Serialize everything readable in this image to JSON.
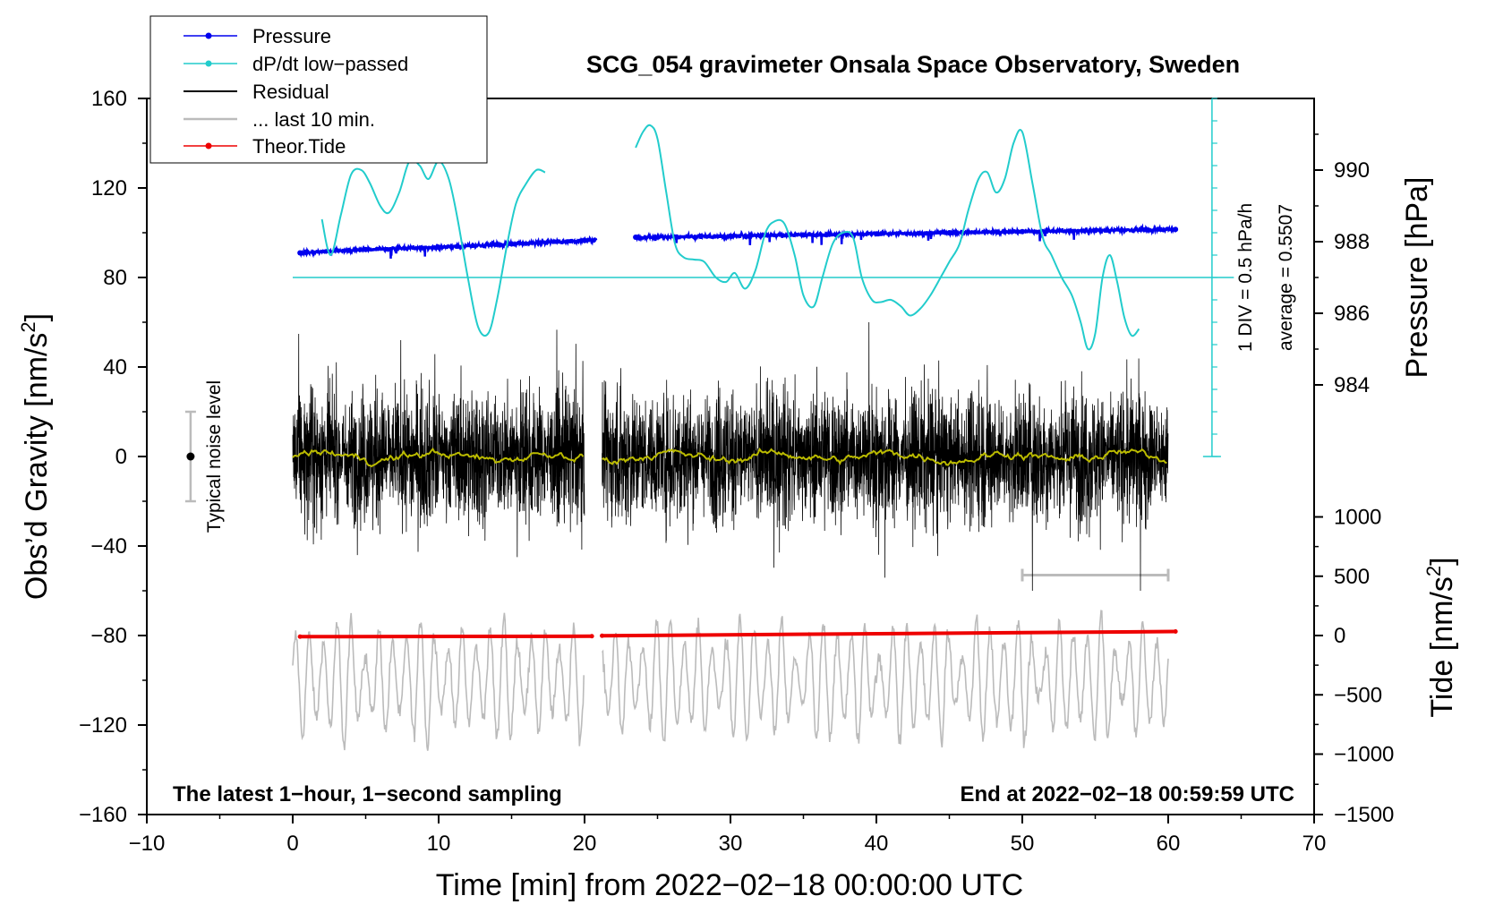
{
  "chart_data": {
    "type": "line",
    "title": "SCG_054 gravimeter Onsala Space Observatory, Sweden",
    "xlabel": "Time [min] from 2022−02−18 00:00:00 UTC",
    "ylabel_left": "Obs’d Gravity [nm/s²]",
    "ylabel_left_text": "Obs’d Gravity [nm/s",
    "ylabel_left_sup": "2",
    "ylabel_left_close": "]",
    "ylabel_right_pressure": "Pressure [hPa]",
    "ylabel_right_tide_text": "Tide [nm/s",
    "ylabel_right_tide_sup": "2",
    "ylabel_right_tide_close": "]",
    "xlim": [
      -10,
      70
    ],
    "ylim_left": [
      -160,
      160
    ],
    "x_ticks": [
      "−10",
      "0",
      "10",
      "20",
      "30",
      "40",
      "50",
      "60",
      "70"
    ],
    "x_tick_values": [
      -10,
      0,
      10,
      20,
      30,
      40,
      50,
      60,
      70
    ],
    "y_left_ticks": [
      "160",
      "120",
      "80",
      "40",
      "0",
      "−40",
      "−80",
      "−120",
      "−160"
    ],
    "y_left_tick_values": [
      160,
      120,
      80,
      40,
      0,
      -40,
      -80,
      -120,
      -160
    ],
    "pressure_axis": {
      "ticks": [
        "990",
        "988",
        "986",
        "984"
      ],
      "values": [
        990,
        988,
        986,
        984
      ],
      "at_gravity": [
        128,
        96,
        64,
        32
      ]
    },
    "tide_axis": {
      "ticks": [
        "1000",
        "500",
        "0",
        "−500",
        "−1000",
        "−1500"
      ],
      "values": [
        1000,
        500,
        0,
        -500,
        -1000,
        -1500
      ],
      "at_gravity": [
        -27,
        -53.5,
        -80,
        -106.5,
        -133,
        -160
      ]
    },
    "dpdt_scale": {
      "label_div": "1 DIV = 0.5 hPa/h",
      "label_avg": "average = 0.5507",
      "baseline_gravity": 80,
      "top_gravity": 160,
      "bottom_gravity": 0
    },
    "noise_bar": {
      "label": "Typical noise level",
      "x": -7,
      "center": 0,
      "half_range": 20
    },
    "gap_minutes": [
      20.5,
      21.2
    ],
    "last10_bar": {
      "x_start": 50,
      "x_end": 60,
      "y": -53
    },
    "annotations": {
      "left": "The latest 1−hour, 1−second sampling",
      "right": "End at 2022−02−18 00:59:59 UTC"
    },
    "legend": [
      {
        "label": "Pressure",
        "color": "#0000ee",
        "marker": true
      },
      {
        "label": "dP/dt low−passed",
        "color": "#22cccc",
        "marker": true
      },
      {
        "label": "Residual",
        "color": "#000000",
        "marker": false
      },
      {
        "label": "... last 10 min.",
        "color": "#bbbbbb",
        "marker": false
      },
      {
        "label": "Theor.Tide",
        "color": "#ee0000",
        "marker": true
      }
    ],
    "series": [
      {
        "name": "Pressure",
        "color": "#0000ee",
        "x": [
          0.5,
          5,
          10,
          15,
          20,
          23.5,
          30,
          35,
          40,
          45,
          50,
          55,
          60.5
        ],
        "y": [
          91,
          92.5,
          93.5,
          95,
          96.5,
          98,
          98.5,
          99,
          99.5,
          100,
          100.5,
          101,
          101.5
        ]
      },
      {
        "name": "dP/dt low−passed",
        "color": "#22cccc",
        "segments": [
          {
            "x": [
              2,
              2.6,
              3.3,
              4,
              4.7,
              5.3,
              6,
              6.6,
              7.3,
              8,
              8.7,
              9.3,
              10,
              10.7,
              11.3,
              12,
              12.7,
              13.4,
              14,
              14.7,
              15.3,
              16,
              16.7,
              17.3
            ],
            "y": [
              106,
              90,
              108,
              126,
              128,
              122,
              112,
              109,
              118,
              132,
              130,
              124,
              132,
              124,
              106,
              80,
              58,
              55,
              70,
              95,
              113,
              122,
              128,
              127
            ]
          },
          {
            "x": [
              23.5,
              24,
              24.5,
              25,
              25.6,
              26.2,
              26.8,
              27.5,
              28.2,
              29,
              29.7,
              30.3,
              31,
              31.7,
              32.4,
              33,
              33.7,
              34.4,
              35,
              35.7,
              36.3,
              37,
              37.7,
              38.4,
              39,
              39.7,
              40.3,
              41,
              41.7,
              42.3,
              43,
              43.7,
              44.4,
              45,
              45.7,
              46.3,
              47,
              47.6,
              48.2,
              48.8,
              49.4,
              50,
              50.7,
              51.4,
              52,
              52.7,
              53.4,
              54,
              54.5,
              55,
              55.5,
              56,
              56.5,
              57,
              57.5,
              58
            ],
            "y": [
              138,
              145,
              148,
              142,
              118,
              95,
              89,
              88,
              87,
              80,
              78,
              82,
              75,
              83,
              100,
              105,
              104,
              90,
              72,
              67,
              80,
              95,
              100,
              98,
              80,
              70,
              69,
              70,
              67,
              63,
              66,
              72,
              80,
              87,
              95,
              110,
              124,
              127,
              118,
              124,
              140,
              145,
              122,
              98,
              90,
              80,
              72,
              60,
              48,
              55,
              80,
              90,
              78,
              62,
              54,
              57
            ]
          }
        ]
      },
      {
        "name": "Residual",
        "color": "#000000",
        "segments": [
          [
            0,
            20
          ],
          [
            21.2,
            60
          ]
        ]
      },
      {
        "name": "Residual smoothed",
        "color": "#bbbb00"
      },
      {
        "name": "... last 10 min.",
        "color": "#bbbbbb",
        "segments": [
          [
            0,
            20
          ],
          [
            21.2,
            60
          ]
        ]
      },
      {
        "name": "Theor.Tide",
        "color": "#ee0000",
        "x": [
          0.5,
          20.5,
          21.2,
          60.5
        ],
        "y": [
          -80.5,
          -80.3,
          -80.1,
          -78.2
        ]
      }
    ]
  }
}
